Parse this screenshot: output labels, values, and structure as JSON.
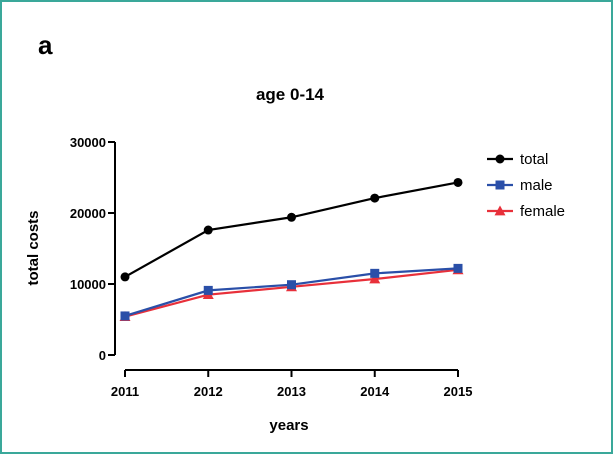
{
  "panel_label": "a",
  "chart_data": {
    "type": "line",
    "title": "age 0-14",
    "xlabel": "years",
    "ylabel": "total costs",
    "x": [
      2011,
      2012,
      2013,
      2014,
      2015
    ],
    "xticks": [
      "2011",
      "2012",
      "2013",
      "2014",
      "2015"
    ],
    "yticks": [
      "0",
      "10000",
      "20000",
      "30000"
    ],
    "ylim": [
      0,
      30000
    ],
    "grid": false,
    "legend_position": "right",
    "series": [
      {
        "name": "total",
        "marker": "circle",
        "color": "#000000",
        "values": [
          11000,
          17600,
          19400,
          22100,
          24300
        ]
      },
      {
        "name": "male",
        "marker": "square",
        "color": "#2a4fa8",
        "values": [
          5500,
          9100,
          9900,
          11500,
          12200
        ]
      },
      {
        "name": "female",
        "marker": "triangle",
        "color": "#e8303a",
        "values": [
          5400,
          8500,
          9600,
          10700,
          12000
        ]
      }
    ]
  }
}
